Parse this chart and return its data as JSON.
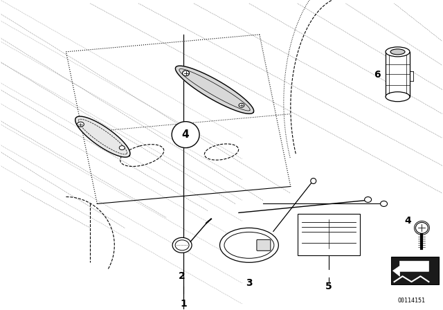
{
  "background_color": "#ffffff",
  "figure_width": 6.4,
  "figure_height": 4.48,
  "dpi": 100,
  "image_id": "O0114151",
  "line_color": "#000000"
}
